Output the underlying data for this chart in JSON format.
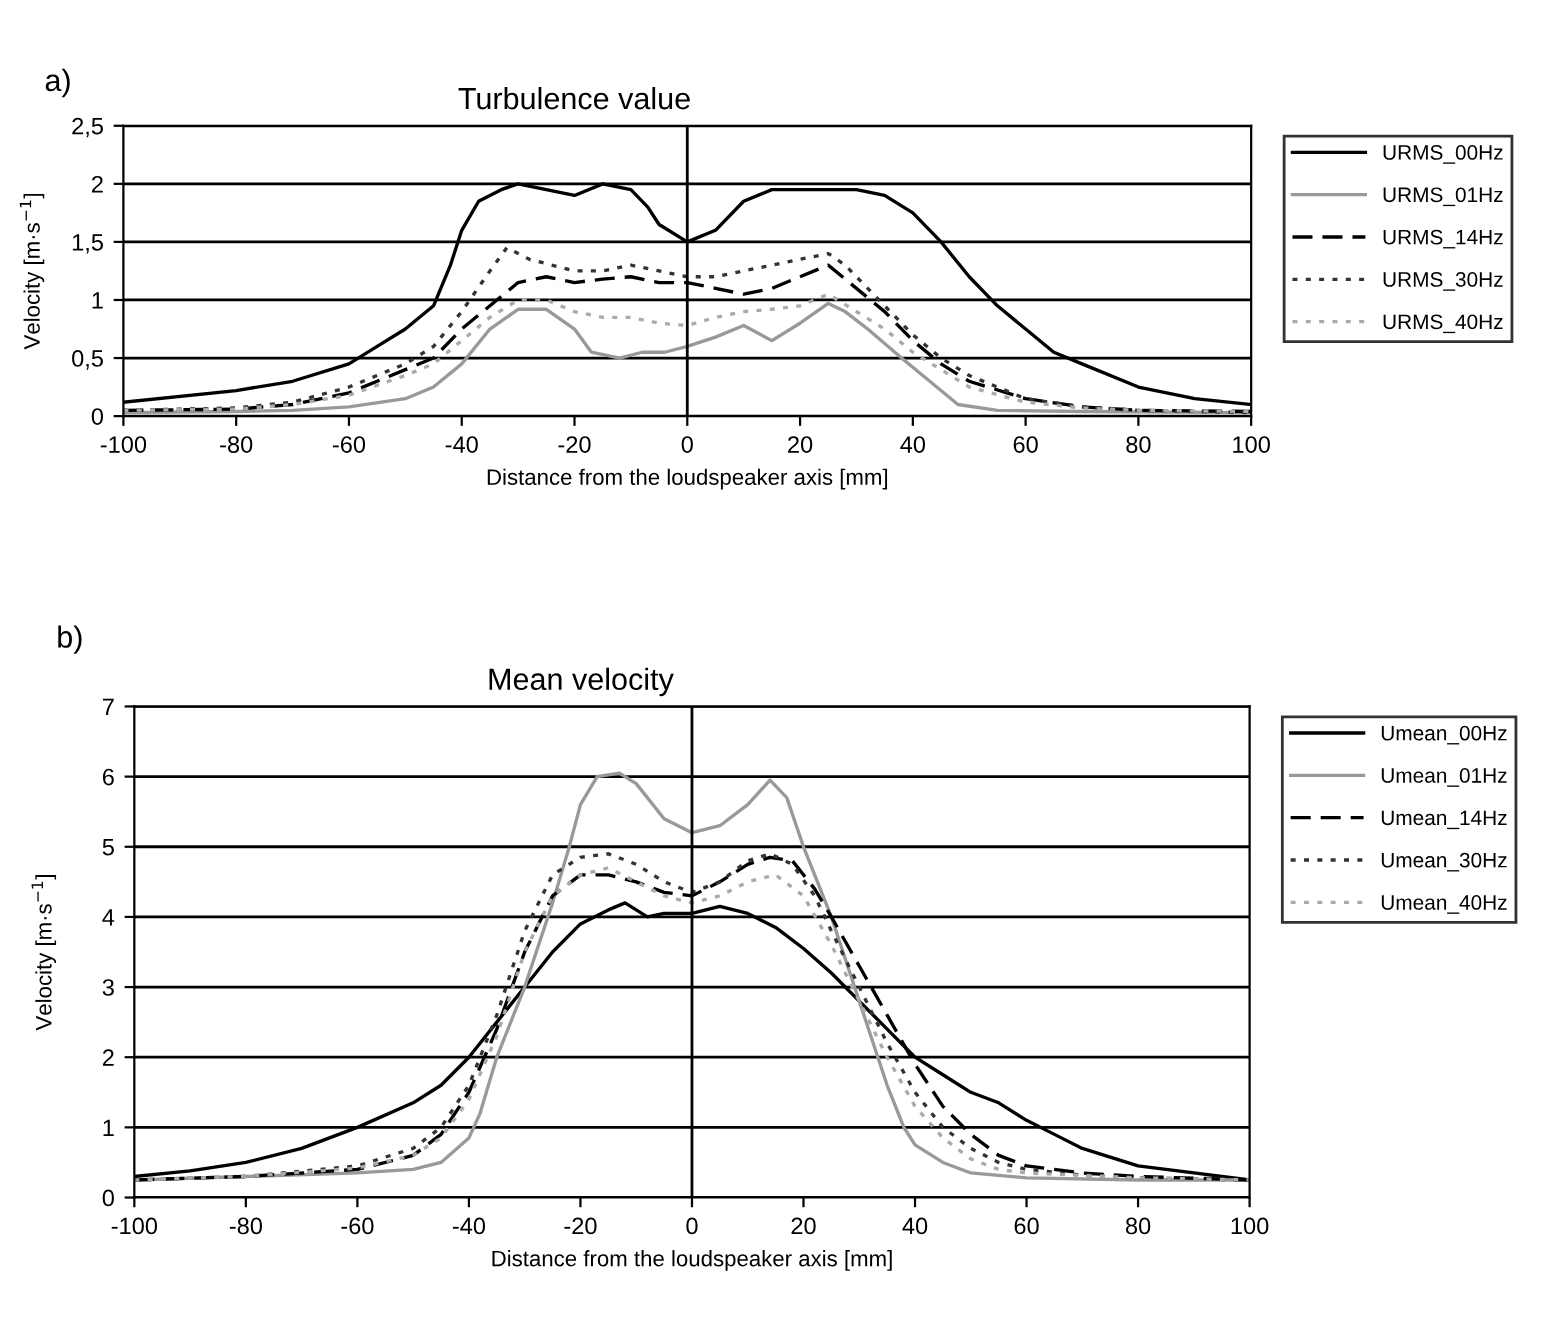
{
  "chart_data": [
    {
      "type": "line",
      "title": "Turbulence value",
      "xlabel": "Distance from the loudspeaker axis [mm]",
      "ylabel": "Velocity [m·s$^{−1}$]",
      "annotations": [
        "a)"
      ],
      "ref_lines": [
        {
          "axis": "x",
          "value": 0
        }
      ],
      "xlim": [
        -100,
        100
      ],
      "xticks": [
        -100,
        -80,
        -60,
        -40,
        -20,
        0,
        20,
        40,
        60,
        80,
        100
      ],
      "ylim": [
        0,
        2.5
      ],
      "yticks": [
        0,
        {
          "value": 0.5,
          "label": "0,5"
        },
        1,
        {
          "value": 1.5,
          "label": "1,5"
        },
        2,
        {
          "value": 2.5,
          "label": "2,5"
        }
      ],
      "grid": "y",
      "legend": "right",
      "series": [
        {
          "name": "URMS_00Hz",
          "color": "#000000",
          "line_style": "solid",
          "x": [
            -100,
            -80,
            -70,
            -60,
            -55,
            -50,
            -45,
            -42,
            -40,
            -37,
            -33,
            -30,
            -25,
            -20,
            -15,
            -10,
            -7,
            -5,
            0,
            5,
            10,
            15,
            20,
            25,
            30,
            35,
            40,
            45,
            50,
            55,
            60,
            65,
            70,
            80,
            90,
            100
          ],
          "values": [
            0.12,
            0.22,
            0.3,
            0.45,
            0.6,
            0.75,
            0.95,
            1.3,
            1.6,
            1.85,
            1.95,
            2.0,
            1.95,
            1.9,
            2.0,
            1.95,
            1.8,
            1.65,
            1.5,
            1.6,
            1.85,
            1.95,
            1.95,
            1.95,
            1.95,
            1.9,
            1.75,
            1.5,
            1.2,
            0.95,
            0.75,
            0.55,
            0.45,
            0.25,
            0.15,
            0.1
          ]
        },
        {
          "name": "URMS_01Hz",
          "color": "#999999",
          "line_style": "solid",
          "x": [
            -100,
            -80,
            -70,
            -60,
            -50,
            -45,
            -40,
            -35,
            -30,
            -25,
            -20,
            -17,
            -12,
            -8,
            -4,
            0,
            5,
            10,
            15,
            20,
            25,
            28,
            32,
            38,
            43,
            48,
            55,
            70,
            100
          ],
          "values": [
            0.03,
            0.04,
            0.05,
            0.08,
            0.15,
            0.25,
            0.45,
            0.75,
            0.92,
            0.92,
            0.75,
            0.55,
            0.5,
            0.55,
            0.55,
            0.6,
            0.68,
            0.78,
            0.65,
            0.8,
            0.97,
            0.9,
            0.75,
            0.5,
            0.3,
            0.1,
            0.05,
            0.04,
            0.03
          ]
        },
        {
          "name": "URMS_14Hz",
          "color": "#000000",
          "line_style": "dashed",
          "x": [
            -100,
            -80,
            -70,
            -60,
            -50,
            -45,
            -40,
            -35,
            -30,
            -25,
            -20,
            -15,
            -10,
            -5,
            0,
            5,
            10,
            15,
            20,
            25,
            30,
            35,
            40,
            45,
            50,
            60,
            70,
            80,
            100
          ],
          "values": [
            0.05,
            0.06,
            0.1,
            0.2,
            0.4,
            0.5,
            0.75,
            0.95,
            1.15,
            1.2,
            1.15,
            1.18,
            1.2,
            1.15,
            1.15,
            1.1,
            1.05,
            1.1,
            1.2,
            1.3,
            1.1,
            0.9,
            0.65,
            0.45,
            0.3,
            0.15,
            0.08,
            0.05,
            0.04
          ]
        },
        {
          "name": "URMS_30Hz",
          "color": "#333333",
          "line_style": "dotted",
          "x": [
            -100,
            -80,
            -70,
            -60,
            -50,
            -45,
            -40,
            -35,
            -32,
            -28,
            -20,
            -15,
            -10,
            -5,
            0,
            5,
            10,
            15,
            20,
            25,
            28,
            32,
            36,
            40,
            45,
            50,
            60,
            70,
            80,
            100
          ],
          "values": [
            0.05,
            0.07,
            0.12,
            0.25,
            0.45,
            0.6,
            0.9,
            1.25,
            1.45,
            1.35,
            1.25,
            1.25,
            1.3,
            1.25,
            1.2,
            1.2,
            1.25,
            1.3,
            1.35,
            1.4,
            1.3,
            1.1,
            0.9,
            0.7,
            0.5,
            0.35,
            0.15,
            0.08,
            0.05,
            0.03
          ]
        },
        {
          "name": "URMS_40Hz",
          "color": "#aaaaaa",
          "line_style": "dotted",
          "x": [
            -100,
            -80,
            -70,
            -60,
            -50,
            -45,
            -40,
            -35,
            -30,
            -25,
            -20,
            -15,
            -10,
            -5,
            0,
            5,
            10,
            15,
            20,
            25,
            30,
            35,
            40,
            45,
            50,
            60,
            70,
            80,
            100
          ],
          "values": [
            0.05,
            0.06,
            0.1,
            0.18,
            0.35,
            0.45,
            0.65,
            0.85,
            1.0,
            1.0,
            0.9,
            0.85,
            0.85,
            0.8,
            0.78,
            0.85,
            0.9,
            0.92,
            0.95,
            1.05,
            0.9,
            0.75,
            0.55,
            0.4,
            0.25,
            0.12,
            0.07,
            0.05,
            0.04
          ]
        }
      ]
    },
    {
      "type": "line",
      "title": "Mean velocity",
      "xlabel": "Distance from the loudspeaker axis [mm]",
      "ylabel": "Velocity [m·s$^{−1}$]",
      "annotations": [
        "b)"
      ],
      "ref_lines": [
        {
          "axis": "x",
          "value": 0
        }
      ],
      "xlim": [
        -100,
        100
      ],
      "xticks": [
        -100,
        -80,
        -60,
        -40,
        -20,
        0,
        20,
        40,
        60,
        80,
        100
      ],
      "ylim": [
        0,
        7
      ],
      "yticks": [
        0,
        1,
        2,
        3,
        4,
        5,
        6,
        7
      ],
      "grid": "y",
      "legend": "right",
      "series": [
        {
          "name": "Umean_00Hz",
          "color": "#000000",
          "line_style": "solid",
          "x": [
            -100,
            -90,
            -80,
            -70,
            -60,
            -50,
            -45,
            -40,
            -35,
            -30,
            -25,
            -20,
            -15,
            -12,
            -8,
            -5,
            0,
            5,
            10,
            15,
            20,
            25,
            30,
            35,
            40,
            45,
            50,
            55,
            60,
            65,
            70,
            80,
            90,
            100
          ],
          "values": [
            0.3,
            0.38,
            0.5,
            0.7,
            1.0,
            1.35,
            1.6,
            2.0,
            2.5,
            3.0,
            3.5,
            3.9,
            4.1,
            4.2,
            4.0,
            4.05,
            4.05,
            4.15,
            4.05,
            3.85,
            3.55,
            3.2,
            2.8,
            2.4,
            2.0,
            1.75,
            1.5,
            1.35,
            1.1,
            0.9,
            0.7,
            0.45,
            0.35,
            0.25
          ]
        },
        {
          "name": "Umean_01Hz",
          "color": "#999999",
          "line_style": "solid",
          "x": [
            -100,
            -80,
            -60,
            -50,
            -45,
            -40,
            -38,
            -35,
            -30,
            -25,
            -22,
            -20,
            -17,
            -13,
            -10,
            -5,
            0,
            5,
            10,
            14,
            17,
            20,
            25,
            30,
            35,
            38,
            40,
            45,
            50,
            60,
            80,
            100
          ],
          "values": [
            0.25,
            0.3,
            0.35,
            0.4,
            0.5,
            0.85,
            1.2,
            2.0,
            3.0,
            4.2,
            5.0,
            5.6,
            6.0,
            6.05,
            5.9,
            5.4,
            5.2,
            5.3,
            5.6,
            5.95,
            5.7,
            5.0,
            4.0,
            2.8,
            1.6,
            1.0,
            0.75,
            0.5,
            0.35,
            0.28,
            0.25,
            0.25
          ]
        },
        {
          "name": "Umean_14Hz",
          "color": "#000000",
          "line_style": "dashed",
          "x": [
            -100,
            -80,
            -60,
            -50,
            -45,
            -40,
            -35,
            -30,
            -25,
            -20,
            -15,
            -10,
            -5,
            0,
            5,
            10,
            14,
            18,
            22,
            25,
            30,
            35,
            40,
            45,
            50,
            55,
            60,
            70,
            80,
            100
          ],
          "values": [
            0.25,
            0.3,
            0.4,
            0.6,
            0.9,
            1.5,
            2.4,
            3.5,
            4.3,
            4.6,
            4.6,
            4.5,
            4.35,
            4.3,
            4.5,
            4.75,
            4.85,
            4.8,
            4.4,
            4.0,
            3.3,
            2.6,
            1.9,
            1.3,
            0.9,
            0.6,
            0.45,
            0.35,
            0.3,
            0.25
          ]
        },
        {
          "name": "Umean_30Hz",
          "color": "#333333",
          "line_style": "dotted",
          "x": [
            -100,
            -80,
            -60,
            -50,
            -45,
            -40,
            -35,
            -30,
            -25,
            -20,
            -15,
            -10,
            -5,
            0,
            5,
            10,
            14,
            18,
            22,
            25,
            30,
            35,
            40,
            45,
            50,
            55,
            60,
            70,
            80,
            100
          ],
          "values": [
            0.25,
            0.3,
            0.45,
            0.7,
            1.0,
            1.6,
            2.6,
            3.8,
            4.6,
            4.85,
            4.9,
            4.75,
            4.5,
            4.35,
            4.5,
            4.8,
            4.9,
            4.75,
            4.3,
            3.8,
            3.0,
            2.2,
            1.5,
            1.0,
            0.7,
            0.5,
            0.4,
            0.32,
            0.28,
            0.25
          ]
        },
        {
          "name": "Umean_40Hz",
          "color": "#aaaaaa",
          "line_style": "dotted",
          "x": [
            -100,
            -80,
            -60,
            -50,
            -45,
            -40,
            -35,
            -30,
            -25,
            -20,
            -15,
            -10,
            -5,
            0,
            5,
            10,
            15,
            20,
            25,
            30,
            35,
            40,
            45,
            50,
            55,
            60,
            80,
            100
          ],
          "values": [
            0.25,
            0.3,
            0.42,
            0.6,
            0.85,
            1.4,
            2.3,
            3.5,
            4.3,
            4.6,
            4.7,
            4.5,
            4.3,
            4.2,
            4.3,
            4.5,
            4.6,
            4.3,
            3.6,
            2.8,
            2.0,
            1.3,
            0.85,
            0.55,
            0.4,
            0.35,
            0.28,
            0.25
          ]
        }
      ]
    }
  ]
}
